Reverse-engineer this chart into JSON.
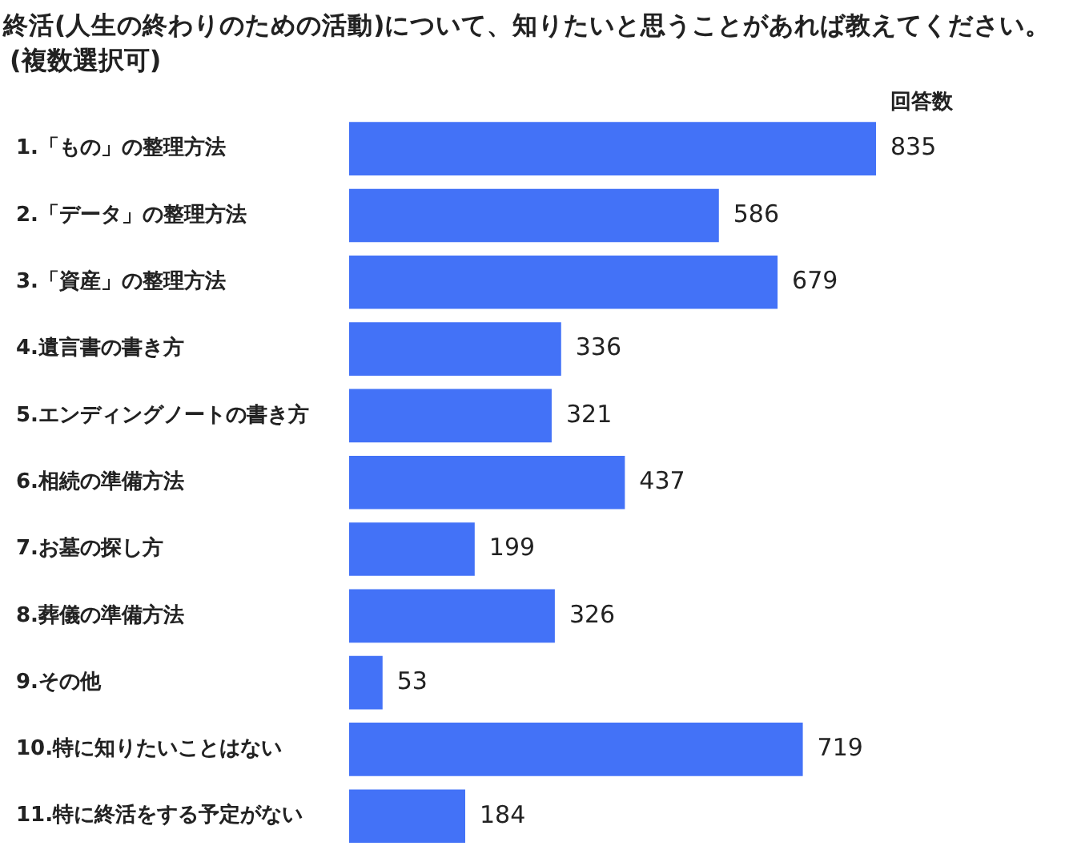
{
  "chart_data": {
    "type": "bar",
    "orientation": "horizontal",
    "title": "終活(人生の終わりのための活動)について、知りたいと思うことがあれば教えてください。",
    "subtitle": "(複数選択可)",
    "categories": [
      "1.「もの」の整理方法",
      "2.「データ」の整理方法",
      "3.「資産」の整理方法",
      "4.遺言書の書き方",
      "5.エンディングノートの書き方",
      "6.相続の準備方法",
      "7.お墓の探し方",
      "8.葬儀の準備方法",
      "9.その他",
      "10.特に知りたいことはない",
      "11.特に終活をする予定がない"
    ],
    "values": [
      835,
      586,
      679,
      336,
      321,
      437,
      199,
      326,
      53,
      719,
      184
    ],
    "color": "#4372f7",
    "data_labels": true,
    "annotations": [
      "回答数"
    ],
    "tick_labels": "y"
  }
}
